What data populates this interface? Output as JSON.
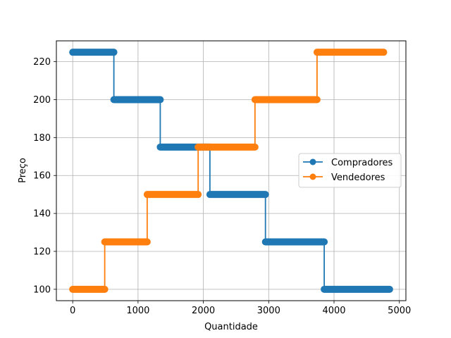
{
  "chart_data": {
    "type": "line",
    "xlabel": "Quantidade",
    "ylabel": "Preço",
    "xlim": [
      -250,
      5100
    ],
    "ylim": [
      94,
      231
    ],
    "xticks": [
      0,
      1000,
      2000,
      3000,
      4000,
      5000
    ],
    "yticks": [
      100,
      120,
      140,
      160,
      180,
      200,
      220
    ],
    "grid": true,
    "legend_position": "center-right",
    "series": [
      {
        "name": "Compradores",
        "color": "#1f77b4",
        "segments": [
          {
            "x_start": 0,
            "x_end": 630,
            "y": 225
          },
          {
            "x_start": 630,
            "x_end": 1340,
            "y": 200
          },
          {
            "x_start": 1340,
            "x_end": 2100,
            "y": 175
          },
          {
            "x_start": 2100,
            "x_end": 2950,
            "y": 150
          },
          {
            "x_start": 2950,
            "x_end": 3850,
            "y": 125
          },
          {
            "x_start": 3850,
            "x_end": 4850,
            "y": 100
          }
        ]
      },
      {
        "name": "Vendedores",
        "color": "#ff7f0e",
        "segments": [
          {
            "x_start": 0,
            "x_end": 490,
            "y": 100
          },
          {
            "x_start": 490,
            "x_end": 1140,
            "y": 125
          },
          {
            "x_start": 1140,
            "x_end": 1920,
            "y": 150
          },
          {
            "x_start": 1920,
            "x_end": 2790,
            "y": 175
          },
          {
            "x_start": 2790,
            "x_end": 3740,
            "y": 200
          },
          {
            "x_start": 3740,
            "x_end": 4760,
            "y": 225
          }
        ]
      }
    ]
  }
}
